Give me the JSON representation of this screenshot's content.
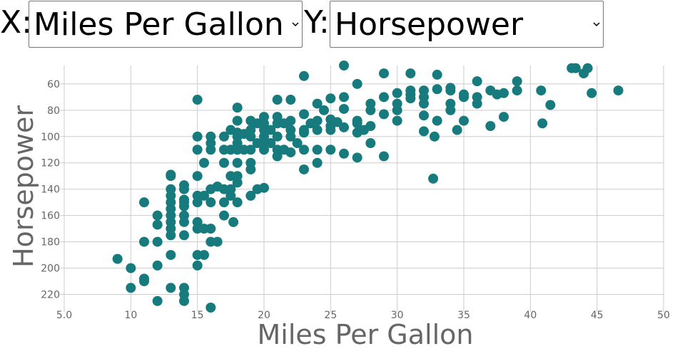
{
  "controls": {
    "x_label": "X:",
    "x_select": "Miles Per Gallon",
    "y_label": "Y:",
    "y_select": "Horsepower"
  },
  "chart_data": {
    "type": "scatter",
    "xlabel": "Miles Per Gallon",
    "ylabel": "Horsepower",
    "color": "#177b7e",
    "xlim": [
      5,
      50
    ],
    "xticks": [
      {
        "value": 5,
        "label": "5.0"
      },
      10,
      15,
      20,
      25,
      30,
      35,
      40,
      45,
      50
    ],
    "ylim": [
      46,
      230
    ],
    "yticks": [
      60,
      80,
      100,
      120,
      140,
      160,
      180,
      200,
      220
    ],
    "y_inverted": true,
    "grid": true,
    "x": [
      9,
      10,
      10,
      11,
      11,
      11,
      11,
      12,
      12,
      12,
      12,
      12,
      13,
      13,
      13,
      13,
      13,
      13,
      13,
      13,
      13,
      13,
      13,
      13,
      14,
      14,
      14,
      14,
      14,
      14,
      14,
      14,
      14,
      14,
      14,
      15,
      15,
      15,
      15,
      15,
      15,
      15,
      15,
      15,
      15,
      16,
      16,
      16,
      16,
      16,
      16,
      16,
      16,
      15.5,
      15.5,
      15.5,
      15.5,
      16.5,
      16.5,
      17,
      17,
      17,
      17,
      17,
      17,
      17.5,
      17.5,
      17.5,
      17.5,
      17.5,
      17.7,
      18,
      18,
      18,
      18,
      18,
      18,
      18,
      18,
      18,
      18,
      18.5,
      18.5,
      19,
      19,
      19,
      19,
      19,
      19,
      19,
      19.5,
      19.5,
      19.5,
      20,
      20,
      20,
      20,
      20,
      20,
      20,
      20.5,
      20.5,
      21,
      21,
      21,
      21,
      21,
      21,
      21.5,
      21.5,
      22,
      22,
      22,
      22,
      22,
      22.5,
      23,
      23,
      23,
      23,
      23,
      23,
      23.5,
      24,
      24,
      24,
      24,
      24,
      24.5,
      25,
      25,
      25,
      25,
      25,
      25.5,
      26,
      26,
      26,
      26,
      26,
      27,
      27,
      27,
      27,
      27,
      27.5,
      28,
      28,
      28,
      28,
      29,
      29,
      29,
      29,
      30,
      30,
      30,
      30,
      31,
      31,
      31,
      31,
      32,
      32,
      32,
      32,
      32,
      32.7,
      32.8,
      33,
      33,
      33,
      34,
      34,
      34,
      34,
      34.5,
      35,
      35,
      35,
      36,
      36,
      36,
      37,
      37,
      37.5,
      38,
      38,
      39,
      39,
      40.8,
      40.9,
      41.5,
      43.1,
      43.4,
      44,
      44.3,
      44.6,
      46.6
    ],
    "values": [
      193,
      200,
      215,
      150,
      180,
      208,
      210,
      160,
      167,
      180,
      198,
      225,
      129,
      130,
      140,
      145,
      150,
      155,
      160,
      165,
      170,
      175,
      190,
      215,
      137,
      140,
      148,
      150,
      153,
      160,
      165,
      175,
      215,
      220,
      225,
      72,
      100,
      110,
      130,
      145,
      150,
      165,
      170,
      190,
      198,
      100,
      105,
      110,
      140,
      150,
      170,
      180,
      230,
      120,
      145,
      170,
      190,
      138,
      180,
      100,
      110,
      120,
      140,
      150,
      160,
      95,
      110,
      130,
      140,
      145,
      165,
      78,
      88,
      97,
      100,
      105,
      110,
      120,
      130,
      135,
      150,
      98,
      110,
      88,
      95,
      100,
      110,
      120,
      125,
      145,
      90,
      105,
      140,
      85,
      90,
      95,
      100,
      105,
      110,
      139,
      95,
      105,
      72,
      85,
      90,
      100,
      110,
      115,
      90,
      110,
      72,
      88,
      95,
      100,
      112,
      105,
      54,
      83,
      95,
      97,
      110,
      125,
      90,
      75,
      88,
      95,
      110,
      120,
      80,
      71,
      87,
      92,
      95,
      110,
      89,
      46,
      70,
      79,
      93,
      113,
      60,
      88,
      90,
      97,
      116,
      95,
      75,
      80,
      92,
      105,
      52,
      70,
      83,
      115,
      67,
      75,
      88,
      80,
      52,
      65,
      68,
      71,
      65,
      70,
      75,
      84,
      96,
      132,
      100,
      53,
      64,
      88,
      63,
      65,
      75,
      80,
      95,
      68,
      70,
      88,
      58,
      70,
      75,
      65,
      92,
      68,
      67,
      85,
      58,
      65,
      65,
      90,
      76,
      48,
      48,
      52,
      48,
      67,
      65
    ]
  }
}
